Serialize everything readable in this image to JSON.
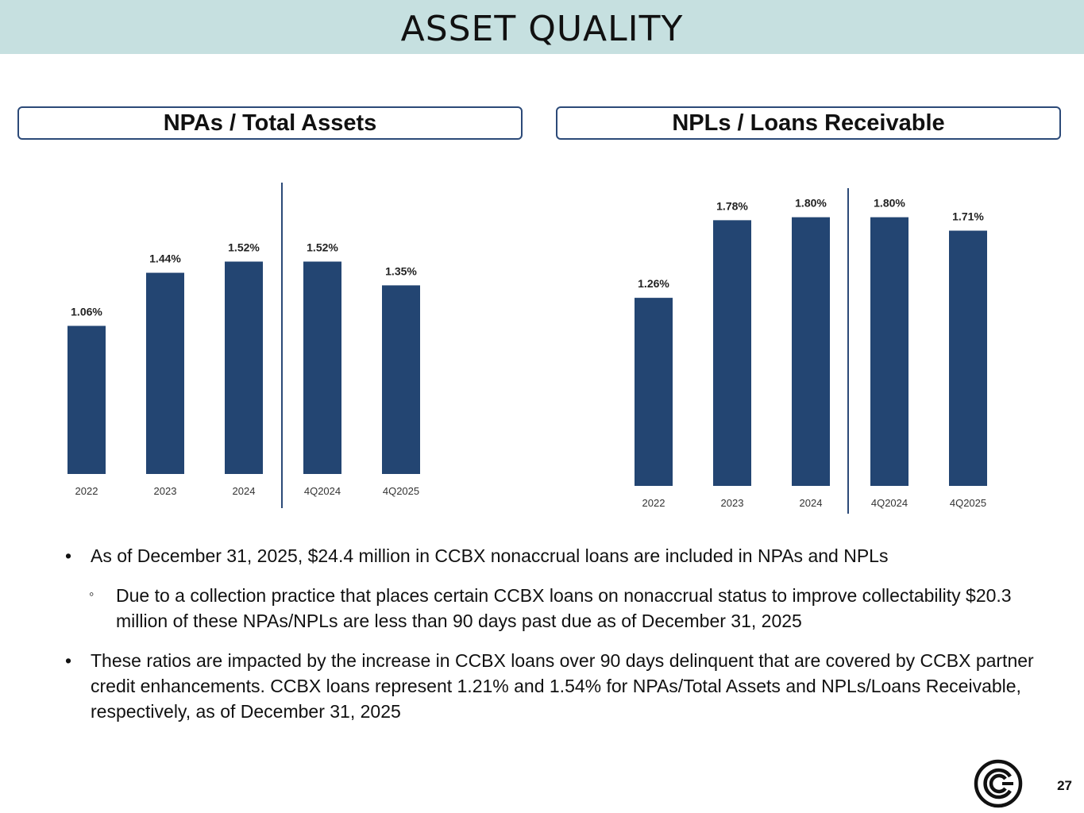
{
  "title": "ASSET QUALITY",
  "chart_data": [
    {
      "type": "bar",
      "title": "NPAs / Total Assets",
      "categories": [
        "2022",
        "2023",
        "2024",
        "4Q2024",
        "4Q2025"
      ],
      "values": [
        1.06,
        1.44,
        1.52,
        1.52,
        1.35
      ],
      "labels": [
        "1.06%",
        "1.44%",
        "1.52%",
        "1.52%",
        "1.35%"
      ],
      "divider_after_index": 2,
      "ylim": [
        0,
        2.0
      ],
      "grid": false,
      "color": "#234572"
    },
    {
      "type": "bar",
      "title": "NPLs / Loans Receivable",
      "categories": [
        "2022",
        "2023",
        "2024",
        "4Q2024",
        "4Q2025"
      ],
      "values": [
        1.26,
        1.78,
        1.8,
        1.8,
        1.71
      ],
      "labels": [
        "1.26%",
        "1.78%",
        "1.80%",
        "1.80%",
        "1.71%"
      ],
      "divider_after_index": 2,
      "ylim": [
        0,
        1.8
      ],
      "grid": false,
      "color": "#234572"
    }
  ],
  "notes": {
    "bullet1": "As of December 31, 2025, $24.4 million in CCBX nonaccrual loans are included in NPAs and NPLs",
    "sub1": "Due to a collection practice that places certain CCBX loans on nonaccrual status to improve collectability $20.3 million of these NPAs/NPLs are less than 90 days past due as of December 31, 2025",
    "bullet2": "These ratios are impacted by the increase in CCBX loans over 90 days delinquent that are covered by CCBX partner credit enhancements. CCBX loans represent 1.21% and 1.54% for NPAs/Total Assets and NPLs/Loans Receivable, respectively, as of December 31, 2025",
    "bullet_glyph": "•",
    "sub_glyph": "◦"
  },
  "page_number": "27",
  "logo_icon": "company-logo-icon"
}
